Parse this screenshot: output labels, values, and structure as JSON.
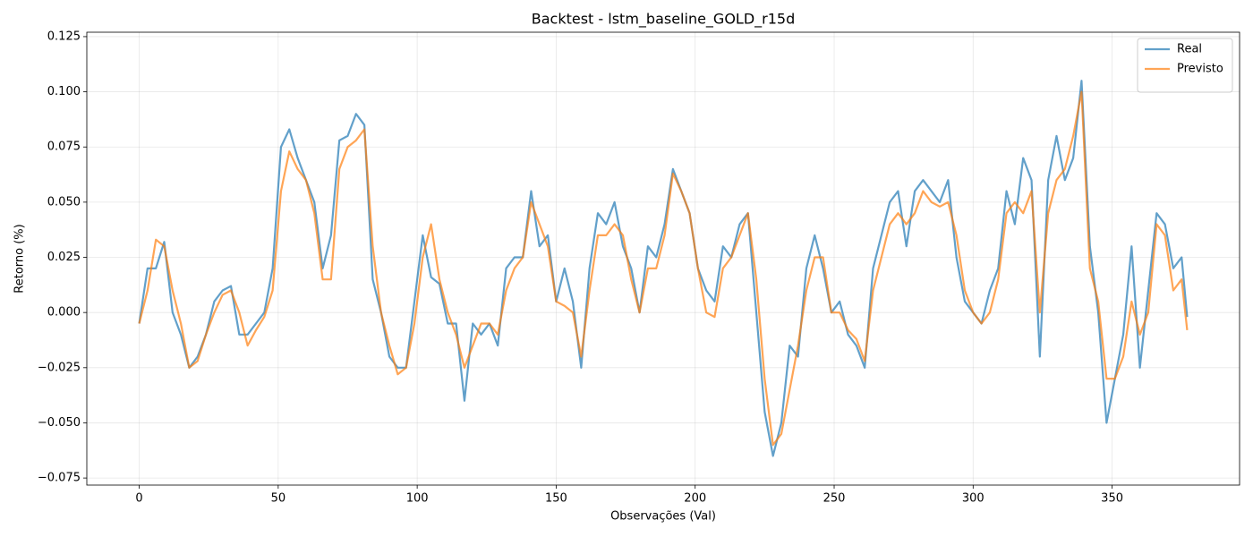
{
  "chart_data": {
    "type": "line",
    "title": "Backtest - lstm_baseline_GOLD_r15d",
    "xlabel": "Observações (Val)",
    "ylabel": "Retorno (%)",
    "x": [
      0,
      3,
      6,
      9,
      12,
      15,
      18,
      21,
      24,
      27,
      30,
      33,
      36,
      39,
      42,
      45,
      48,
      51,
      54,
      57,
      60,
      63,
      66,
      69,
      72,
      75,
      78,
      81,
      84,
      87,
      90,
      93,
      96,
      99,
      102,
      105,
      108,
      111,
      114,
      117,
      120,
      123,
      126,
      129,
      132,
      135,
      138,
      141,
      144,
      147,
      150,
      153,
      156,
      159,
      162,
      165,
      168,
      171,
      174,
      177,
      180,
      183,
      186,
      189,
      192,
      195,
      198,
      201,
      204,
      207,
      210,
      213,
      216,
      219,
      222,
      225,
      228,
      231,
      234,
      237,
      240,
      243,
      246,
      249,
      252,
      255,
      258,
      261,
      264,
      267,
      270,
      273,
      276,
      279,
      282,
      285,
      288,
      291,
      294,
      297,
      300,
      303,
      306,
      309,
      312,
      315,
      318,
      321,
      324,
      327,
      330,
      333,
      336,
      339,
      342,
      345,
      348,
      351,
      354,
      357,
      360,
      363,
      366,
      369,
      372,
      375,
      377
    ],
    "series": [
      {
        "name": "Real",
        "color": "#1f77b4",
        "values": [
          -0.005,
          0.02,
          0.02,
          0.032,
          0.0,
          -0.01,
          -0.025,
          -0.02,
          -0.01,
          0.005,
          0.01,
          0.012,
          -0.01,
          -0.01,
          -0.005,
          0.0,
          0.02,
          0.075,
          0.083,
          0.07,
          0.06,
          0.05,
          0.02,
          0.035,
          0.078,
          0.08,
          0.09,
          0.085,
          0.015,
          0.0,
          -0.02,
          -0.025,
          -0.025,
          0.005,
          0.035,
          0.016,
          0.013,
          -0.005,
          -0.005,
          -0.04,
          -0.005,
          -0.01,
          -0.005,
          -0.015,
          0.02,
          0.025,
          0.025,
          0.055,
          0.03,
          0.035,
          0.005,
          0.02,
          0.005,
          -0.025,
          0.02,
          0.045,
          0.04,
          0.05,
          0.03,
          0.02,
          0.0,
          0.03,
          0.025,
          0.04,
          0.065,
          0.055,
          0.045,
          0.02,
          0.01,
          0.005,
          0.03,
          0.025,
          0.04,
          0.045,
          0.0,
          -0.045,
          -0.065,
          -0.05,
          -0.015,
          -0.02,
          0.02,
          0.035,
          0.02,
          0.0,
          0.005,
          -0.01,
          -0.015,
          -0.025,
          0.02,
          0.035,
          0.05,
          0.055,
          0.03,
          0.055,
          0.06,
          0.055,
          0.05,
          0.06,
          0.025,
          0.005,
          0.0,
          -0.005,
          0.01,
          0.02,
          0.055,
          0.04,
          0.07,
          0.06,
          -0.02,
          0.06,
          0.08,
          0.06,
          0.07,
          0.105,
          0.03,
          0.0,
          -0.05,
          -0.03,
          -0.01,
          0.03,
          -0.025,
          0.01,
          0.045,
          0.04,
          0.02,
          0.025,
          -0.002
        ]
      },
      {
        "name": "Previsto",
        "color": "#ff7f0e",
        "values": [
          -0.005,
          0.01,
          0.033,
          0.03,
          0.01,
          -0.005,
          -0.025,
          -0.022,
          -0.01,
          0.0,
          0.008,
          0.01,
          0.0,
          -0.015,
          -0.008,
          -0.002,
          0.01,
          0.055,
          0.073,
          0.065,
          0.06,
          0.045,
          0.015,
          0.015,
          0.065,
          0.075,
          0.078,
          0.083,
          0.03,
          0.0,
          -0.015,
          -0.028,
          -0.025,
          -0.005,
          0.025,
          0.04,
          0.015,
          0.0,
          -0.01,
          -0.025,
          -0.015,
          -0.005,
          -0.005,
          -0.01,
          0.01,
          0.02,
          0.025,
          0.05,
          0.04,
          0.03,
          0.005,
          0.003,
          0.0,
          -0.02,
          0.01,
          0.035,
          0.035,
          0.04,
          0.035,
          0.015,
          0.0,
          0.02,
          0.02,
          0.035,
          0.063,
          0.055,
          0.045,
          0.02,
          0.0,
          -0.002,
          0.02,
          0.025,
          0.035,
          0.045,
          0.015,
          -0.03,
          -0.06,
          -0.055,
          -0.035,
          -0.015,
          0.01,
          0.025,
          0.025,
          0.0,
          0.0,
          -0.008,
          -0.012,
          -0.022,
          0.01,
          0.025,
          0.04,
          0.045,
          0.04,
          0.045,
          0.055,
          0.05,
          0.048,
          0.05,
          0.035,
          0.01,
          0.0,
          -0.005,
          0.0,
          0.015,
          0.045,
          0.05,
          0.045,
          0.055,
          0.0,
          0.045,
          0.06,
          0.065,
          0.08,
          0.1,
          0.02,
          0.005,
          -0.03,
          -0.03,
          -0.02,
          0.005,
          -0.01,
          0.0,
          0.04,
          0.035,
          0.01,
          0.015,
          -0.008
        ]
      }
    ],
    "xlim": [
      -18.85,
      395.85
    ],
    "ylim": [
      -0.0782,
      0.127
    ],
    "xticks": [
      0,
      50,
      100,
      150,
      200,
      250,
      300,
      350
    ],
    "yticks": [
      {
        "value": -0.075,
        "label": "−0.075"
      },
      {
        "value": -0.05,
        "label": "−0.050"
      },
      {
        "value": -0.025,
        "label": "−0.025"
      },
      {
        "value": 0,
        "label": "0.000"
      },
      0.025,
      {
        "value": 0.05,
        "label": "0.050"
      },
      0.075,
      {
        "value": 0.1,
        "label": "0.100"
      },
      0.125
    ],
    "grid": true,
    "legend": "upper-right"
  }
}
